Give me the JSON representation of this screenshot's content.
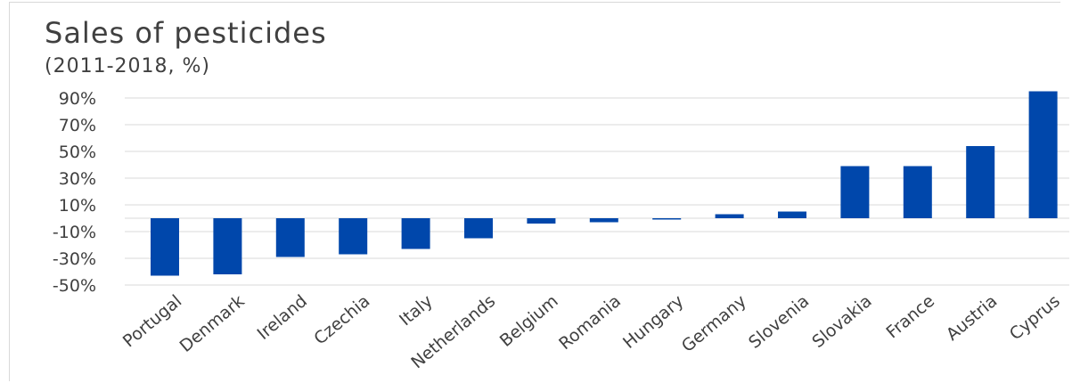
{
  "chart_data": {
    "type": "bar",
    "title": "Sales of pesticides",
    "subtitle": "(2011-2018, %)",
    "xlabel": "",
    "ylabel": "",
    "ylim": [
      -50,
      100
    ],
    "yticks": [
      90,
      70,
      50,
      30,
      10,
      -10,
      -30,
      -50
    ],
    "ytick_labels": [
      "90%",
      "70%",
      "50%",
      "30%",
      "10%",
      "-10%",
      "-30%",
      "-50%"
    ],
    "grid": true,
    "bar_color": "#0047AB",
    "categories": [
      "Portugal",
      "Denmark",
      "Ireland",
      "Czechia",
      "Italy",
      "Netherlands",
      "Belgium",
      "Romania",
      "Hungary",
      "Germany",
      "Slovenia",
      "Slovakia",
      "France",
      "Austria",
      "Cyprus"
    ],
    "values": [
      -43,
      -42,
      -29,
      -27,
      -23,
      -15,
      -4,
      -3,
      -1,
      3,
      5,
      39,
      39,
      54,
      95
    ]
  }
}
